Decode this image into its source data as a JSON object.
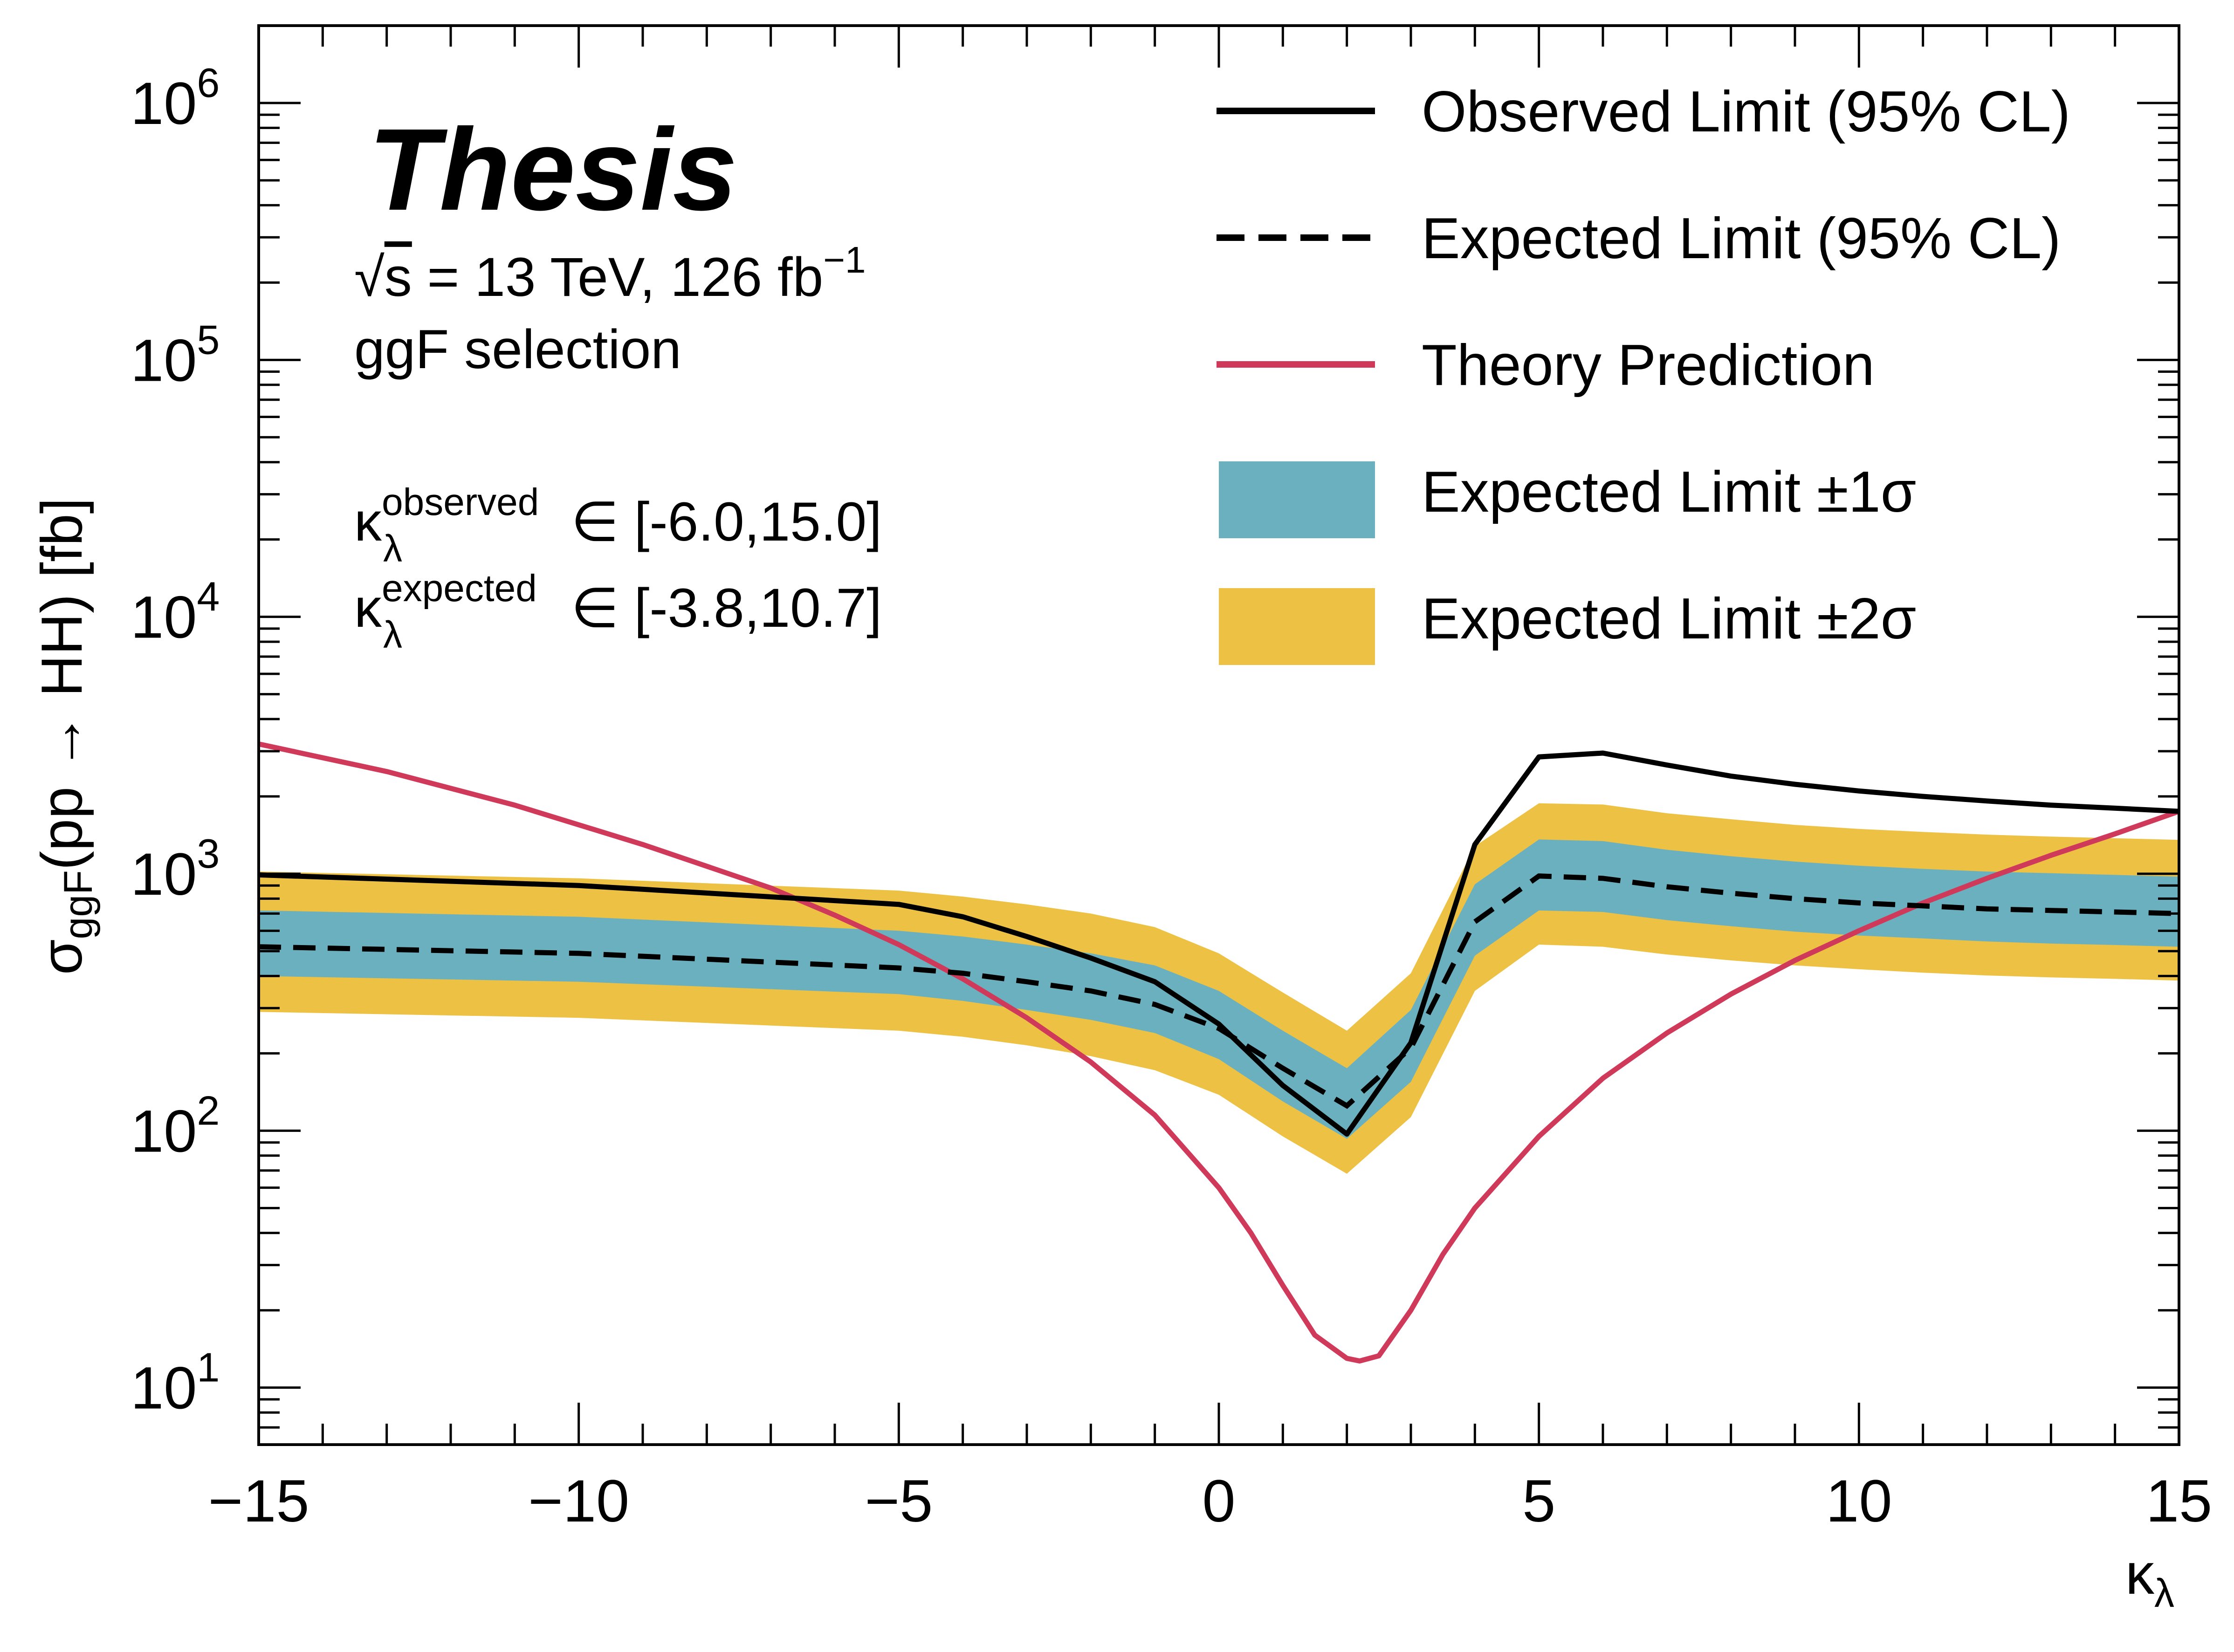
{
  "chart_data": {
    "type": "line",
    "scale": {
      "x": "linear",
      "y": "log"
    },
    "xlim": [
      -15,
      15
    ],
    "ylim": [
      6,
      2000000
    ],
    "xlabel": {
      "main": "κ",
      "sub": "λ"
    },
    "ylabel": {
      "main": "σ",
      "sub": "ggF",
      "rest": "(pp → HH)  [fb]"
    },
    "x_ticks": [
      -15,
      -10,
      -5,
      0,
      5,
      10,
      15
    ],
    "x_tick_labels": [
      "−15",
      "−10",
      "−5",
      "0",
      "5",
      "10",
      "15"
    ],
    "y_ticks": [
      {
        "base": "10",
        "exp": "1",
        "value": 10
      },
      {
        "base": "10",
        "exp": "2",
        "value": 100
      },
      {
        "base": "10",
        "exp": "3",
        "value": 1000
      },
      {
        "base": "10",
        "exp": "4",
        "value": 10000
      },
      {
        "base": "10",
        "exp": "5",
        "value": 100000
      },
      {
        "base": "10",
        "exp": "6",
        "value": 1000000
      }
    ],
    "annotations": {
      "label": "Thesis",
      "energy": {
        "sqrt": "√",
        "s": "s",
        "rest": " = 13 TeV, 126 fb",
        "sup": "−1"
      },
      "selection": "ggF selection",
      "kappa_observed": {
        "symbol": "κ",
        "sub": "λ",
        "sup": "observed",
        "range": "∈ [-6.0,15.0]"
      },
      "kappa_expected": {
        "symbol": "κ",
        "sub": "λ",
        "sup": "expected",
        "range": "∈ [-3.8,10.7]"
      }
    },
    "legend": {
      "position": "top-right",
      "entries": [
        {
          "key": "observed",
          "label": "Observed Limit (95% CL)"
        },
        {
          "key": "expected",
          "label": "Expected Limit (95% CL)"
        },
        {
          "key": "theory",
          "label": "Theory Prediction"
        },
        {
          "key": "band1",
          "label": "Expected Limit ±1σ"
        },
        {
          "key": "band2",
          "label": "Expected Limit ±2σ"
        }
      ]
    },
    "colors": {
      "observed": "#000000",
      "expected": "#000000",
      "theory": "#d03a5a",
      "band1": "#6ab0bf",
      "band2": "#edc143"
    },
    "series": {
      "observed": {
        "x": [
          -15,
          -10,
          -5,
          -4,
          -3,
          -2,
          -1,
          0,
          1,
          2,
          3,
          4,
          5,
          6,
          7,
          8,
          9,
          10,
          11,
          12,
          13,
          14,
          15
        ],
        "y": [
          990,
          900,
          760,
          680,
          570,
          470,
          380,
          260,
          150,
          97,
          220,
          1300,
          2850,
          2950,
          2650,
          2400,
          2230,
          2100,
          2000,
          1920,
          1850,
          1800,
          1750
        ]
      },
      "expected": {
        "x": [
          -15,
          -10,
          -5,
          -4,
          -3,
          -2,
          -1,
          0,
          1,
          2,
          3,
          4,
          5,
          6,
          7,
          8,
          9,
          10,
          11,
          12,
          13,
          14,
          15
        ],
        "y": [
          520,
          490,
          430,
          410,
          380,
          350,
          310,
          250,
          175,
          125,
          210,
          650,
          980,
          960,
          890,
          840,
          800,
          770,
          750,
          730,
          720,
          710,
          700
        ]
      },
      "band1": {
        "x": [
          -15,
          -10,
          -5,
          -4,
          -3,
          -2,
          -1,
          0,
          1,
          2,
          3,
          4,
          5,
          6,
          7,
          8,
          9,
          10,
          11,
          12,
          13,
          14,
          15
        ],
        "lo": [
          400,
          380,
          340,
          320,
          295,
          270,
          240,
          190,
          130,
          93,
          155,
          480,
          720,
          710,
          660,
          625,
          595,
          575,
          560,
          545,
          535,
          528,
          520
        ],
        "hi": [
          720,
          680,
          600,
          570,
          530,
          490,
          440,
          350,
          245,
          175,
          295,
          910,
          1360,
          1340,
          1240,
          1170,
          1115,
          1075,
          1045,
          1020,
          1005,
          990,
          975
        ]
      },
      "band2": {
        "x": [
          -15,
          -10,
          -5,
          -4,
          -3,
          -2,
          -1,
          0,
          1,
          2,
          3,
          4,
          5,
          6,
          7,
          8,
          9,
          10,
          11,
          12,
          13,
          14,
          15
        ],
        "lo": [
          290,
          275,
          245,
          232,
          215,
          195,
          172,
          138,
          95,
          68,
          113,
          350,
          530,
          520,
          485,
          460,
          440,
          425,
          412,
          402,
          395,
          390,
          384
        ],
        "hi": [
          1020,
          960,
          860,
          815,
          760,
          700,
          620,
          490,
          345,
          245,
          410,
          1280,
          1880,
          1860,
          1720,
          1630,
          1550,
          1495,
          1455,
          1420,
          1395,
          1375,
          1355
        ]
      },
      "theory": {
        "x": [
          -15,
          -13,
          -11,
          -9,
          -7,
          -6,
          -5,
          -4,
          -3,
          -2,
          -1,
          0,
          0.5,
          1,
          1.5,
          2,
          2.2,
          2.5,
          3,
          3.5,
          4,
          5,
          6,
          7,
          8,
          9,
          10,
          11,
          12,
          13,
          14,
          15
        ],
        "y": [
          3200,
          2500,
          1850,
          1300,
          880,
          690,
          530,
          390,
          275,
          185,
          115,
          60,
          40,
          25,
          16,
          13,
          12.7,
          13.3,
          20,
          33,
          50,
          95,
          160,
          240,
          340,
          460,
          600,
          770,
          960,
          1180,
          1430,
          1750
        ]
      }
    }
  }
}
